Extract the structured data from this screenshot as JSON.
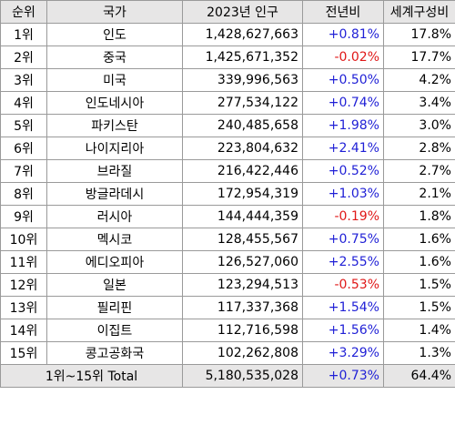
{
  "headers": [
    "순위",
    "국가",
    "2023년 인구",
    "전년비",
    "세계구성비"
  ],
  "rows": [
    {
      "rank": "1위",
      "country": "인도",
      "population": "1,428,627,663",
      "change": "+0.81%",
      "share": "17.8%"
    },
    {
      "rank": "2위",
      "country": "중국",
      "population": "1,425,671,352",
      "change": "-0.02%",
      "share": "17.7%"
    },
    {
      "rank": "3위",
      "country": "미국",
      "population": "339,996,563",
      "change": "+0.50%",
      "share": "4.2%"
    },
    {
      "rank": "4위",
      "country": "인도네시아",
      "population": "277,534,122",
      "change": "+0.74%",
      "share": "3.4%"
    },
    {
      "rank": "5위",
      "country": "파키스탄",
      "population": "240,485,658",
      "change": "+1.98%",
      "share": "3.0%"
    },
    {
      "rank": "6위",
      "country": "나이지리아",
      "population": "223,804,632",
      "change": "+2.41%",
      "share": "2.8%"
    },
    {
      "rank": "7위",
      "country": "브라질",
      "population": "216,422,446",
      "change": "+0.52%",
      "share": "2.7%"
    },
    {
      "rank": "8위",
      "country": "방글라데시",
      "population": "172,954,319",
      "change": "+1.03%",
      "share": "2.1%"
    },
    {
      "rank": "9위",
      "country": "러시아",
      "population": "144,444,359",
      "change": "-0.19%",
      "share": "1.8%"
    },
    {
      "rank": "10위",
      "country": "멕시코",
      "population": "128,455,567",
      "change": "+0.75%",
      "share": "1.6%"
    },
    {
      "rank": "11위",
      "country": "에디오피아",
      "population": "126,527,060",
      "change": "+2.55%",
      "share": "1.6%"
    },
    {
      "rank": "12위",
      "country": "일본",
      "population": "123,294,513",
      "change": "-0.53%",
      "share": "1.5%"
    },
    {
      "rank": "13위",
      "country": "필리핀",
      "population": "117,337,368",
      "change": "+1.54%",
      "share": "1.5%"
    },
    {
      "rank": "14위",
      "country": "이집트",
      "population": "112,716,598",
      "change": "+1.56%",
      "share": "1.4%"
    },
    {
      "rank": "15위",
      "country": "콩고공화국",
      "population": "102,262,808",
      "change": "+3.29%",
      "share": "1.3%"
    }
  ],
  "total": {
    "label": "1위~15위 Total",
    "population": "5,180,535,028",
    "change": "+0.73%",
    "share": "64.4%"
  },
  "colors": {
    "positive": "#1f1fd6",
    "negative": "#e01818",
    "header_bg": "#e7e6e6"
  }
}
